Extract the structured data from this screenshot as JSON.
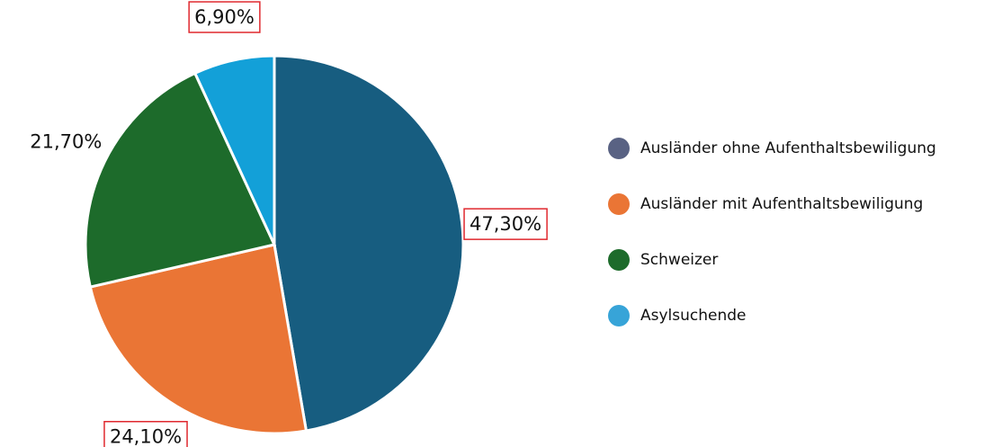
{
  "chart_data": {
    "type": "pie",
    "categories": [
      "Ausländer ohne Aufenthaltsbewiligung",
      "Ausländer mit Aufenthaltsbewiligung",
      "Schweizer",
      "Asylsuchende"
    ],
    "values": [
      47.3,
      24.1,
      21.7,
      6.9
    ],
    "value_labels": [
      "47,30%",
      "24,10%",
      "21,70%",
      "6,90%"
    ],
    "colors": [
      "#175d80",
      "#ea7535",
      "#1d6b2b",
      "#13a0d8"
    ],
    "legend_colors": [
      "#596283",
      "#ea7535",
      "#1d6b2b",
      "#37a4d8"
    ],
    "highlighted": [
      0,
      1,
      3
    ]
  }
}
